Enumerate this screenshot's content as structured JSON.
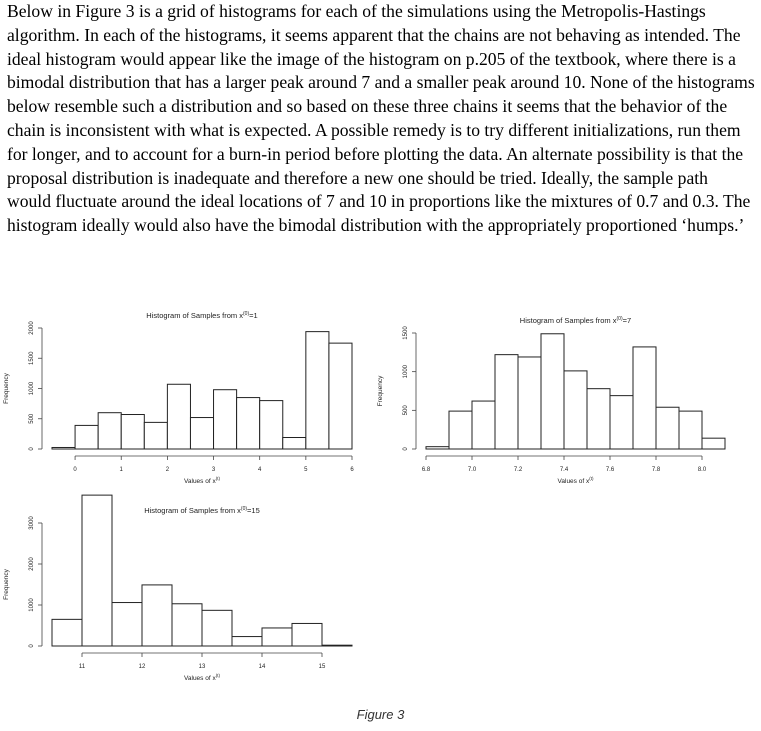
{
  "document": {
    "paragraph": "Below in Figure 3 is a grid of histograms for each of the simulations using the Metropolis-Hastings algorithm. In each of the histograms, it seems apparent that the chains are not behaving as intended. The ideal histogram would appear like the image of the histogram on p.205 of the textbook, where there is a bimodal distribution that has a larger peak around 7 and a smaller peak around 10. None of the histograms below resemble such a distribution and so based on these three chains it seems that the behavior of the chain is inconsistent with what is expected. A possible remedy is to try different initializations, run them for longer, and to account for a burn-in period before plotting the data. An alternate possibility is that the proposal distribution is inadequate and therefore a new one should be tried. Ideally, the sample path would fluctuate around the ideal locations of 7 and 10 in proportions like the mixtures of 0.7 and 0.3. The histogram ideally would also have the bimodal distribution with the appropriately proportioned ‘humps.’",
    "figure_caption": "Figure 3"
  },
  "chart_data": [
    {
      "type": "bar",
      "title_prefix": "Histogram of Samples from x",
      "title_sup": "(0)",
      "title_suffix": "=1",
      "xlabel_prefix": "Values of x",
      "xlabel_sup": "(t)",
      "ylabel": "Frequency",
      "bin_edges": [
        -0.5,
        0,
        0.5,
        1,
        1.5,
        2,
        2.5,
        3,
        3.5,
        4,
        4.5,
        5,
        5.5,
        6
      ],
      "values": [
        25,
        390,
        600,
        570,
        440,
        1070,
        520,
        980,
        850,
        800,
        190,
        1940,
        1750
      ],
      "xticks": [
        0,
        1,
        2,
        3,
        4,
        5,
        6
      ],
      "xtick_labels": [
        "0",
        "1",
        "2",
        "3",
        "4",
        "5",
        "6"
      ],
      "yticks": [
        0,
        500,
        1000,
        1500,
        2000
      ],
      "ytick_labels": [
        "0",
        "500",
        "1000",
        "1500",
        "2000"
      ],
      "xlim": [
        -0.5,
        6
      ],
      "ylim": [
        0,
        2000
      ]
    },
    {
      "type": "bar",
      "title_prefix": "Histogram of Samples from x",
      "title_sup": "(0)",
      "title_suffix": "=7",
      "xlabel_prefix": "Values of x",
      "xlabel_sup": "(t)",
      "ylabel": "Frequency",
      "bin_edges": [
        6.8,
        6.9,
        7.0,
        7.1,
        7.2,
        7.3,
        7.4,
        7.5,
        7.6,
        7.7,
        7.8,
        7.9,
        8.0,
        8.1
      ],
      "values": [
        30,
        490,
        620,
        1220,
        1190,
        1490,
        1010,
        780,
        690,
        1320,
        540,
        490,
        140
      ],
      "xticks": [
        6.8,
        7.0,
        7.2,
        7.4,
        7.6,
        7.8,
        8.0
      ],
      "xtick_labels": [
        "6.8",
        "7.0",
        "7.2",
        "7.4",
        "7.6",
        "7.8",
        "8.0"
      ],
      "yticks": [
        0,
        500,
        1000,
        1500
      ],
      "ytick_labels": [
        "0",
        "500",
        "1000",
        "1500"
      ],
      "xlim": [
        6.8,
        8.1
      ],
      "ylim": [
        0,
        1500
      ]
    },
    {
      "type": "bar",
      "title_prefix": "Histogram of Samples from x",
      "title_sup": "(0)",
      "title_suffix": "=15",
      "xlabel_prefix": "Values of x",
      "xlabel_sup": "(t)",
      "ylabel": "Frequency",
      "bin_edges": [
        10.5,
        11,
        11.5,
        12,
        12.5,
        13,
        13.5,
        14,
        14.5,
        15,
        15.5
      ],
      "values": [
        650,
        3680,
        1060,
        1490,
        1030,
        870,
        230,
        440,
        550,
        20
      ],
      "xticks": [
        11,
        12,
        13,
        14,
        15
      ],
      "xtick_labels": [
        "11",
        "12",
        "13",
        "14",
        "15"
      ],
      "yticks": [
        0,
        1000,
        2000,
        3000
      ],
      "ytick_labels": [
        "0",
        "1000",
        "2000",
        "3000"
      ],
      "xlim": [
        10.5,
        15.5
      ],
      "ylim": [
        0,
        3000
      ]
    }
  ]
}
